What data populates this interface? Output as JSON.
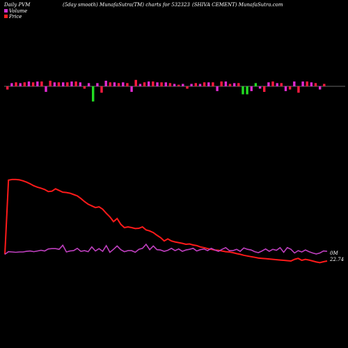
{
  "header": {
    "left": "Daily PVM",
    "middle": "(5day smooth) MunafaSutra(TM) charts for 532323",
    "right": "(SHIVA CEMENT) MunafaSutra.com"
  },
  "legend": {
    "volume_label": "Volume",
    "price_label": "Price",
    "volume_color": "#d033d0",
    "price_color": "#ff2020"
  },
  "chart_data": {
    "type": "line",
    "title": "",
    "end_labels": {
      "volume": "0M",
      "price": "22.74"
    },
    "colors": {
      "price": "#ff1a1a",
      "pvm_line": "#c040c0",
      "bar_up": "#e02ad0",
      "bar_down": "#ff1a40",
      "bar_green": "#22dd22",
      "baseline": "#888888"
    },
    "pvm_bars": [
      -4,
      4,
      5,
      4,
      5,
      6,
      5,
      6,
      6,
      -7,
      7,
      5,
      5,
      5,
      5,
      6,
      6,
      5,
      -3,
      4,
      -19,
      4,
      -8,
      7,
      5,
      5,
      4,
      5,
      4,
      -7,
      8,
      3,
      5,
      6,
      6,
      5,
      5,
      5,
      4,
      3,
      2,
      3,
      -3,
      3,
      4,
      3,
      5,
      5,
      5,
      -6,
      6,
      6,
      3,
      4,
      4,
      -10,
      -10,
      -6,
      4,
      -3,
      -7,
      5,
      6,
      4,
      4,
      -6,
      -4,
      6,
      -8,
      6,
      6,
      5,
      4,
      -4,
      3
    ],
    "price": [
      20,
      242,
      244,
      244,
      243,
      240,
      236,
      231,
      225,
      221,
      218,
      214,
      208,
      209,
      216,
      211,
      206,
      205,
      203,
      199,
      195,
      187,
      178,
      170,
      165,
      160,
      162,
      155,
      143,
      132,
      118,
      127,
      110,
      100,
      102,
      100,
      97,
      98,
      102,
      93,
      90,
      85,
      77,
      70,
      60,
      66,
      60,
      57,
      55,
      53,
      50,
      51,
      48,
      46,
      42,
      40,
      37,
      35,
      33,
      32,
      30,
      28,
      27,
      25,
      22,
      20,
      17,
      15,
      13,
      11,
      9,
      8,
      7,
      6,
      5,
      4,
      3,
      2,
      1,
      0,
      5,
      8,
      2,
      5,
      3,
      0,
      -3,
      -5,
      -2,
      0
    ],
    "pvm_line": [
      20,
      28,
      27,
      26,
      27,
      27,
      29,
      30,
      28,
      30,
      32,
      30,
      36,
      37,
      37,
      35,
      47,
      27,
      30,
      31,
      38,
      29,
      31,
      28,
      42,
      30,
      37,
      29,
      46,
      26,
      35,
      45,
      34,
      28,
      31,
      31,
      26,
      35,
      38,
      50,
      34,
      45,
      34,
      33,
      29,
      32,
      38,
      31,
      36,
      29,
      33,
      35,
      38,
      30,
      34,
      36,
      31,
      38,
      33,
      29,
      35,
      40,
      31,
      31,
      35,
      29,
      39,
      35,
      33,
      28,
      25,
      30,
      36,
      29,
      35,
      32,
      40,
      26,
      40,
      35,
      24,
      31,
      27,
      33,
      28,
      24,
      21,
      24,
      30,
      29
    ]
  }
}
